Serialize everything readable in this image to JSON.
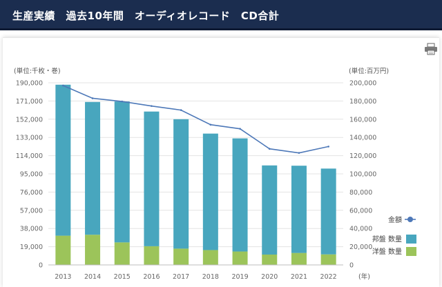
{
  "header": {
    "title": "生産実績　過去10年間　オーディオレコード　CD合計"
  },
  "chart_data": {
    "type": "bar",
    "stacked": true,
    "categories": [
      "2013",
      "2014",
      "2015",
      "2016",
      "2017",
      "2018",
      "2019",
      "2020",
      "2021",
      "2022"
    ],
    "series": [
      {
        "name": "洋盤 数量",
        "axis": "left",
        "color": "#9cc45a",
        "values": [
          30500,
          31500,
          23500,
          19500,
          17000,
          15500,
          14000,
          10800,
          12500,
          11000
        ]
      },
      {
        "name": "邦盤 数量",
        "axis": "left",
        "color": "#48a6be",
        "values": [
          157500,
          138500,
          147000,
          140500,
          135000,
          121500,
          118000,
          93000,
          91000,
          89500
        ]
      },
      {
        "name": "金額",
        "type": "line",
        "axis": "right",
        "color": "#4d78b8",
        "values": [
          197000,
          183000,
          179500,
          174500,
          170000,
          154000,
          149500,
          127500,
          123000,
          130000
        ]
      }
    ],
    "left_axis": {
      "unit_label": "(単位:千枚・巻)",
      "min": 0,
      "max": 190000,
      "ticks": [
        "0",
        "19,000",
        "38,000",
        "57,000",
        "76,000",
        "95,000",
        "114,000",
        "133,000",
        "152,000",
        "171,000",
        "190,000"
      ]
    },
    "right_axis": {
      "unit_label": "(単位:百万円)",
      "min": 0,
      "max": 200000,
      "ticks": [
        "0",
        "20,000",
        "40,000",
        "60,000",
        "80,000",
        "100,000",
        "120,000",
        "140,000",
        "160,000",
        "180,000",
        "200,000"
      ]
    },
    "x_unit_label": "(年)",
    "legend_position": "right",
    "legend": [
      "金額",
      "邦盤 数量",
      "洋盤 数量"
    ]
  }
}
